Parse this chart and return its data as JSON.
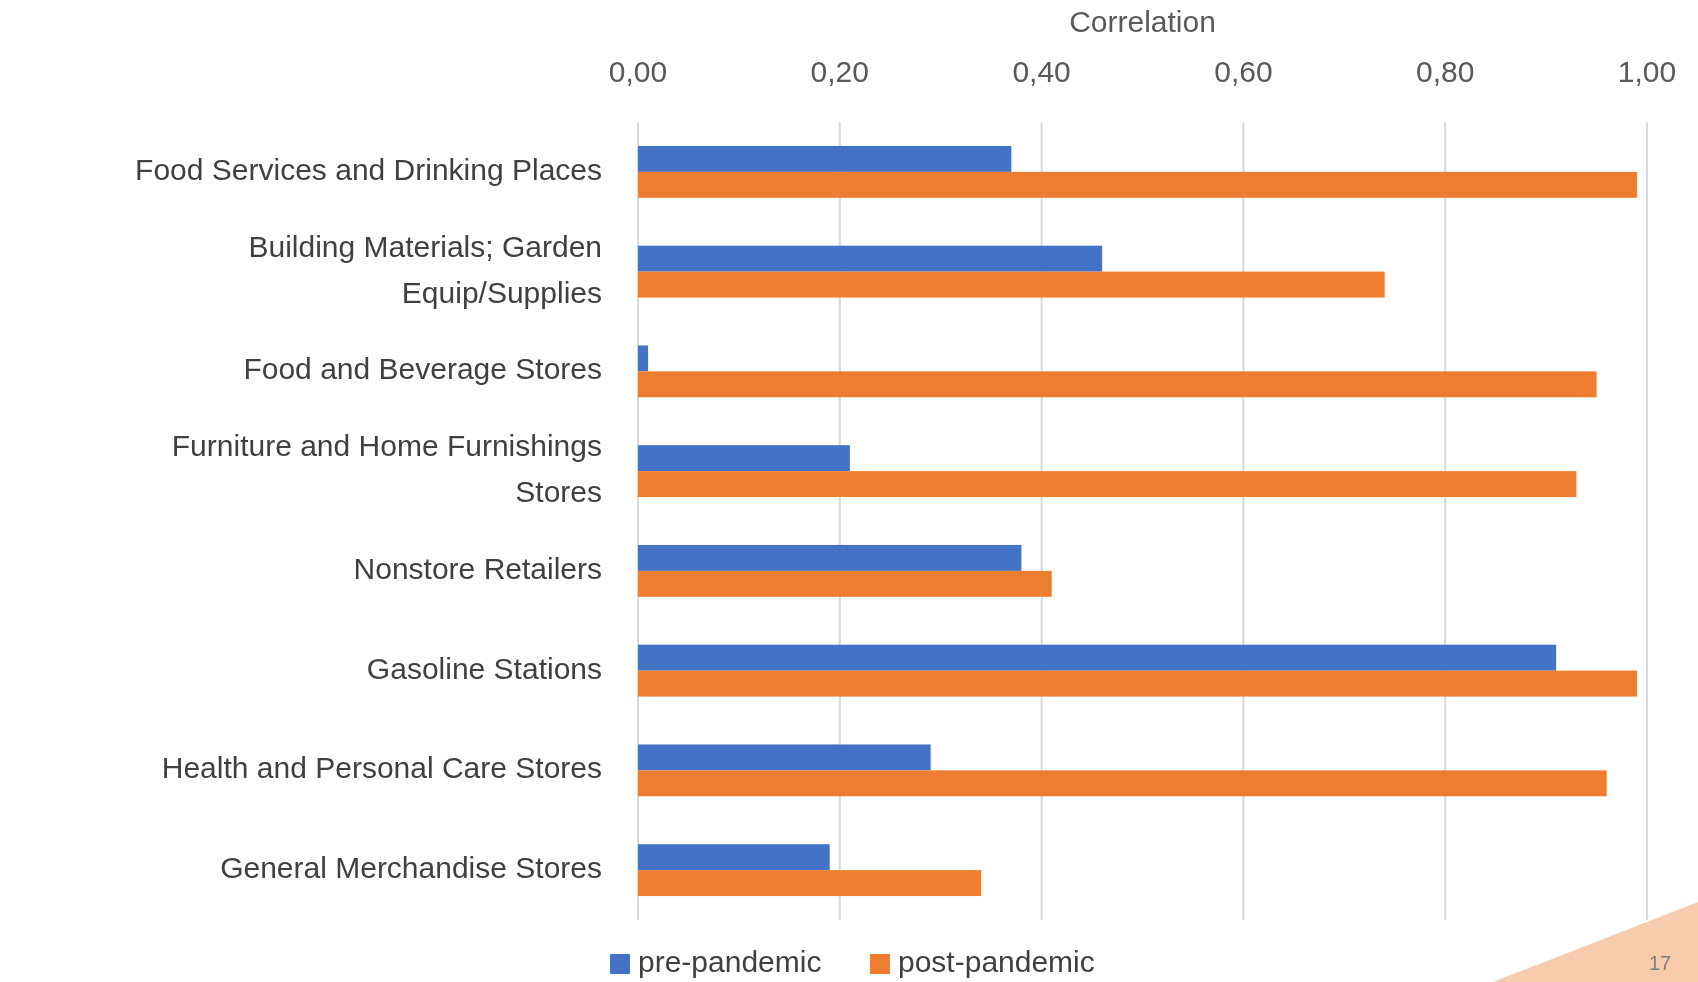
{
  "chart_data": {
    "type": "bar",
    "orientation": "horizontal",
    "xlabel": "Correlation",
    "categories": [
      "Food Services and Drinking Places",
      "Building Materials; Garden Equip/Supplies",
      "Food and Beverage Stores",
      "Furniture and Home Furnishings Stores",
      "Nonstore Retailers",
      "Gasoline Stations",
      "Health and Personal Care Stores",
      "General Merchandise Stores"
    ],
    "series": [
      {
        "name": "pre-pandemic",
        "color": "#4472c4",
        "values": [
          0.37,
          0.46,
          0.01,
          0.21,
          0.38,
          0.91,
          0.29,
          0.19
        ]
      },
      {
        "name": "post-pandemic",
        "color": "#ed7d31",
        "values": [
          0.99,
          0.74,
          0.95,
          0.93,
          0.41,
          0.99,
          0.96,
          0.34
        ]
      }
    ],
    "xlim": [
      0,
      1
    ],
    "xticks": [
      {
        "value": 0,
        "label": "0,00"
      },
      {
        "value": 0.2,
        "label": "0,20"
      },
      {
        "value": 0.4,
        "label": "0,40"
      },
      {
        "value": 0.6,
        "label": "0,60"
      },
      {
        "value": 0.8,
        "label": "0,80"
      },
      {
        "value": 1,
        "label": "1,00"
      }
    ],
    "grid": "x",
    "legend": "bottom",
    "annotations": [
      "17"
    ]
  }
}
